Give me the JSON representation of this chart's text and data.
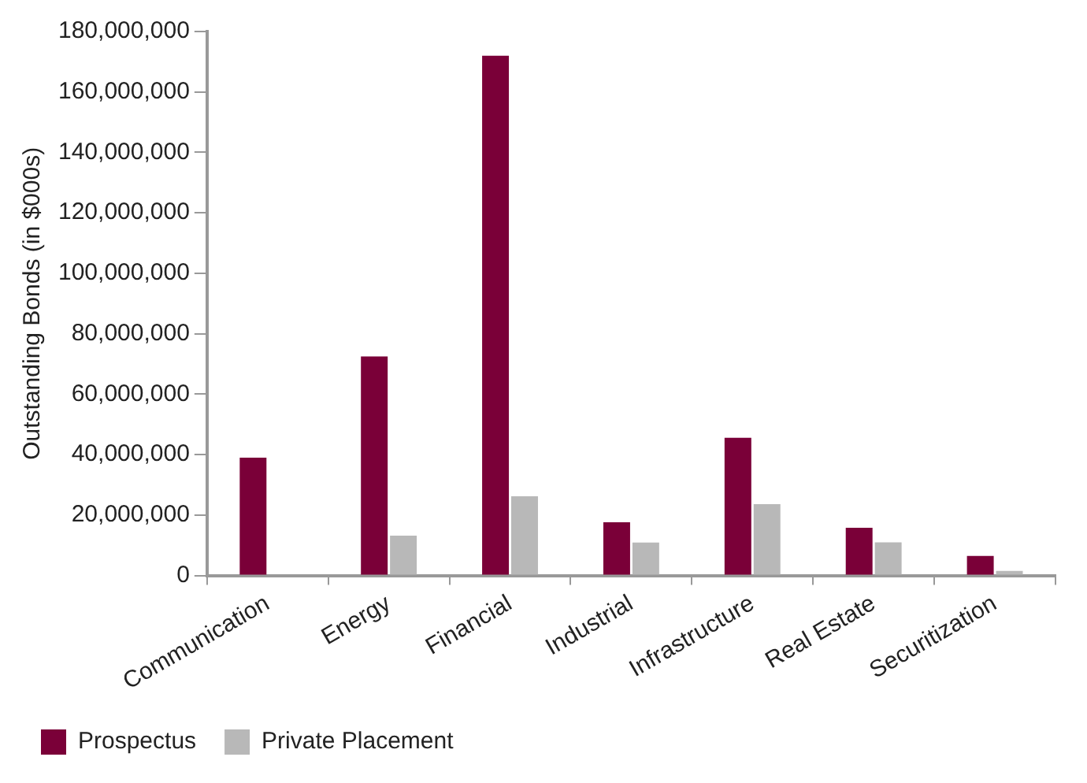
{
  "chart_data": {
    "type": "bar",
    "ylabel": "Outstanding Bonds (in $000s)",
    "categories": [
      "Communication",
      "Energy",
      "Financial",
      "Industrial",
      "Infrastructure",
      "Real Estate",
      "Securitization"
    ],
    "series": [
      {
        "name": "Prospectus",
        "color": "#7a0038",
        "values": [
          39000000,
          72500000,
          172000000,
          17600000,
          45600000,
          15800000,
          6500000
        ]
      },
      {
        "name": "Private Placement",
        "color": "#b8b8b8",
        "values": [
          0,
          13200000,
          26200000,
          10900000,
          23600000,
          11000000,
          1500000
        ]
      }
    ],
    "ylim": [
      0,
      180000000
    ],
    "yticks": [
      {
        "value": 0,
        "label": "0"
      },
      {
        "value": 20000000,
        "label": "20,000,000"
      },
      {
        "value": 40000000,
        "label": "40,000,000"
      },
      {
        "value": 60000000,
        "label": "60,000,000"
      },
      {
        "value": 80000000,
        "label": "80,000,000"
      },
      {
        "value": 100000000,
        "label": "100,000,000"
      },
      {
        "value": 120000000,
        "label": "120,000,000"
      },
      {
        "value": 140000000,
        "label": "140,000,000"
      },
      {
        "value": 160000000,
        "label": "160,000,000"
      },
      {
        "value": 180000000,
        "label": "180,000,000"
      }
    ],
    "grid": false,
    "legend": "bottom left"
  }
}
